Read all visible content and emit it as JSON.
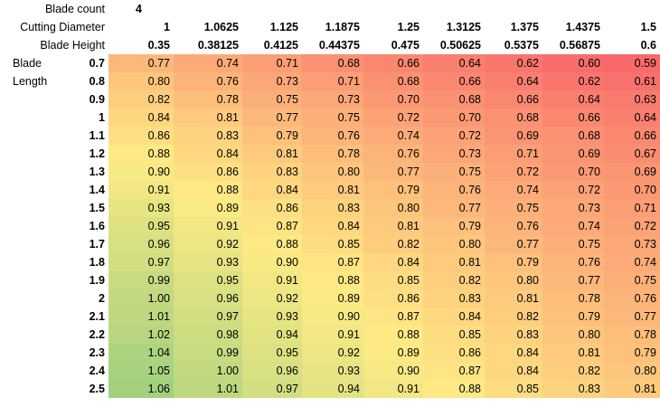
{
  "labels": {
    "blade_count": "Blade count",
    "blade_count_value": "4",
    "cutting_diameter": "Cutting Diameter",
    "blade_height": "Blade Height",
    "blade": "Blade",
    "length": "Length"
  },
  "cutting_diameters": [
    "1",
    "1.0625",
    "1.125",
    "1.1875",
    "1.25",
    "1.3125",
    "1.375",
    "1.4375",
    "1.5"
  ],
  "blade_heights": [
    "0.35",
    "0.38125",
    "0.4125",
    "0.44375",
    "0.475",
    "0.50625",
    "0.5375",
    "0.56875",
    "0.6"
  ],
  "blade_lengths": [
    "0.7",
    "0.8",
    "0.9",
    "1",
    "1.1",
    "1.2",
    "1.3",
    "1.4",
    "1.5",
    "1.6",
    "1.7",
    "1.8",
    "1.9",
    "2",
    "2.1",
    "2.2",
    "2.3",
    "2.4",
    "2.5"
  ],
  "values": [
    [
      "0.77",
      "0.74",
      "0.71",
      "0.68",
      "0.66",
      "0.64",
      "0.62",
      "0.60",
      "0.59"
    ],
    [
      "0.80",
      "0.76",
      "0.73",
      "0.71",
      "0.68",
      "0.66",
      "0.64",
      "0.62",
      "0.61"
    ],
    [
      "0.82",
      "0.78",
      "0.75",
      "0.73",
      "0.70",
      "0.68",
      "0.66",
      "0.64",
      "0.63"
    ],
    [
      "0.84",
      "0.81",
      "0.77",
      "0.75",
      "0.72",
      "0.70",
      "0.68",
      "0.66",
      "0.64"
    ],
    [
      "0.86",
      "0.83",
      "0.79",
      "0.76",
      "0.74",
      "0.72",
      "0.69",
      "0.68",
      "0.66"
    ],
    [
      "0.88",
      "0.84",
      "0.81",
      "0.78",
      "0.76",
      "0.73",
      "0.71",
      "0.69",
      "0.67"
    ],
    [
      "0.90",
      "0.86",
      "0.83",
      "0.80",
      "0.77",
      "0.75",
      "0.72",
      "0.70",
      "0.69"
    ],
    [
      "0.91",
      "0.88",
      "0.84",
      "0.81",
      "0.79",
      "0.76",
      "0.74",
      "0.72",
      "0.70"
    ],
    [
      "0.93",
      "0.89",
      "0.86",
      "0.83",
      "0.80",
      "0.77",
      "0.75",
      "0.73",
      "0.71"
    ],
    [
      "0.95",
      "0.91",
      "0.87",
      "0.84",
      "0.81",
      "0.79",
      "0.76",
      "0.74",
      "0.72"
    ],
    [
      "0.96",
      "0.92",
      "0.88",
      "0.85",
      "0.82",
      "0.80",
      "0.77",
      "0.75",
      "0.73"
    ],
    [
      "0.97",
      "0.93",
      "0.90",
      "0.87",
      "0.84",
      "0.81",
      "0.79",
      "0.76",
      "0.74"
    ],
    [
      "0.99",
      "0.95",
      "0.91",
      "0.88",
      "0.85",
      "0.82",
      "0.80",
      "0.77",
      "0.75"
    ],
    [
      "1.00",
      "0.96",
      "0.92",
      "0.89",
      "0.86",
      "0.83",
      "0.81",
      "0.78",
      "0.76"
    ],
    [
      "1.01",
      "0.97",
      "0.93",
      "0.90",
      "0.87",
      "0.84",
      "0.82",
      "0.79",
      "0.77"
    ],
    [
      "1.02",
      "0.98",
      "0.94",
      "0.91",
      "0.88",
      "0.85",
      "0.83",
      "0.80",
      "0.78"
    ],
    [
      "1.04",
      "0.99",
      "0.95",
      "0.92",
      "0.89",
      "0.86",
      "0.84",
      "0.81",
      "0.79"
    ],
    [
      "1.05",
      "1.00",
      "0.96",
      "0.93",
      "0.90",
      "0.87",
      "0.84",
      "0.82",
      "0.80"
    ],
    [
      "1.06",
      "1.01",
      "0.97",
      "0.94",
      "0.91",
      "0.88",
      "0.85",
      "0.83",
      "0.81"
    ]
  ],
  "color_scale": {
    "low": "#f8696b",
    "mid": "#ffeb84",
    "high": "#63be7b",
    "min": 0.59,
    "max": 1.18
  }
}
